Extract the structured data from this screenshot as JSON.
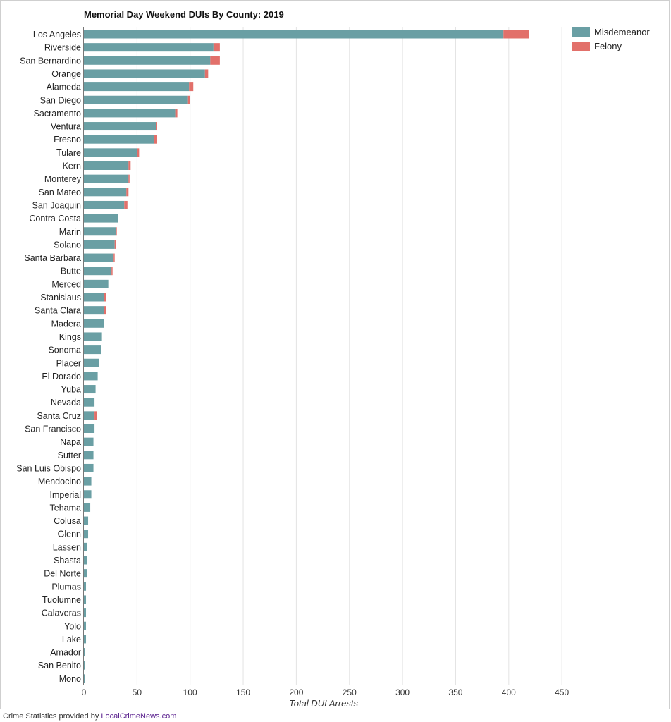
{
  "chart_data": {
    "type": "bar",
    "orientation": "horizontal",
    "stacked": true,
    "title": "Memorial Day Weekend DUIs By County: 2019",
    "xlabel": "Total DUI Arrests",
    "ylabel": "",
    "xlim": [
      0,
      450
    ],
    "xticks": [
      0,
      50,
      100,
      150,
      200,
      250,
      300,
      350,
      400,
      450
    ],
    "grid": "vertical",
    "legend_position": "top-right",
    "categories": [
      "Los Angeles",
      "Riverside",
      "San Bernardino",
      "Orange",
      "Alameda",
      "San Diego",
      "Sacramento",
      "Ventura",
      "Fresno",
      "Tulare",
      "Kern",
      "Monterey",
      "San Mateo",
      "San Joaquin",
      "Contra Costa",
      "Marin",
      "Solano",
      "Santa Barbara",
      "Butte",
      "Merced",
      "Stanislaus",
      "Santa Clara",
      "Madera",
      "Kings",
      "Sonoma",
      "Placer",
      "El Dorado",
      "Yuba",
      "Nevada",
      "Santa Cruz",
      "San Francisco",
      "Napa",
      "Sutter",
      "San Luis Obispo",
      "Mendocino",
      "Imperial",
      "Tehama",
      "Colusa",
      "Glenn",
      "Lassen",
      "Shasta",
      "Del Norte",
      "Plumas",
      "Tuolumne",
      "Calaveras",
      "Yolo",
      "Lake",
      "Amador",
      "San Benito",
      "Mono"
    ],
    "series": [
      {
        "name": "Misdemeanor",
        "color": "#6a9fa4",
        "values": [
          395,
          122,
          119,
          114,
          99,
          98,
          86,
          68,
          66,
          50,
          42,
          42,
          40,
          38,
          32,
          30,
          29,
          28,
          26,
          23,
          19,
          19,
          19,
          17,
          16,
          14,
          13,
          11,
          10,
          10,
          10,
          9,
          9,
          9,
          7,
          7,
          6,
          4,
          4,
          3,
          3,
          3,
          2,
          2,
          2,
          2,
          2,
          1,
          1,
          1
        ]
      },
      {
        "name": "Felony",
        "color": "#e2706a",
        "values": [
          24,
          6,
          9,
          3,
          4,
          2,
          2,
          1,
          3,
          2,
          2,
          1,
          2,
          3,
          0,
          1,
          1,
          1,
          1,
          0,
          2,
          2,
          0,
          0,
          0,
          0,
          0,
          0,
          0,
          2,
          0,
          0,
          0,
          0,
          0,
          0,
          0,
          0,
          0,
          0,
          0,
          0,
          0,
          0,
          0,
          0,
          0,
          0,
          0,
          0
        ]
      }
    ]
  },
  "credit": {
    "prefix": "Crime Statistics provided by ",
    "link_text": "LocalCrimeNews.com"
  }
}
